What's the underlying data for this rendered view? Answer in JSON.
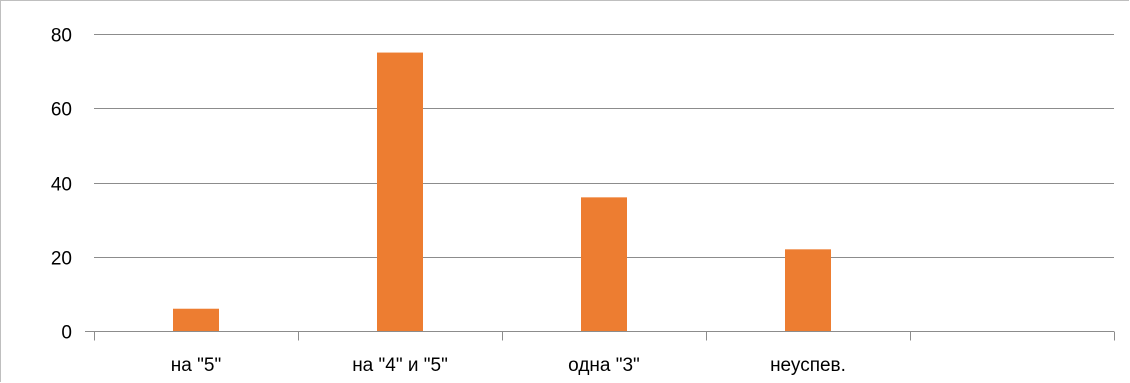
{
  "chart_data": {
    "type": "bar",
    "categories": [
      "на \"5\"",
      "на \"4\" и \"5\"",
      "одна \"3\"",
      "неуспев.",
      ""
    ],
    "values": [
      6,
      75,
      36,
      22,
      null
    ],
    "title": "",
    "xlabel": "",
    "ylabel": "",
    "ylim": [
      0,
      80
    ],
    "yticks": [
      0,
      20,
      40,
      60,
      80
    ],
    "grid": true,
    "legend": "none",
    "colors": {
      "bar": "#ED7D31",
      "grid": "#8c8c8c",
      "frame": "#bfbfbf"
    }
  }
}
